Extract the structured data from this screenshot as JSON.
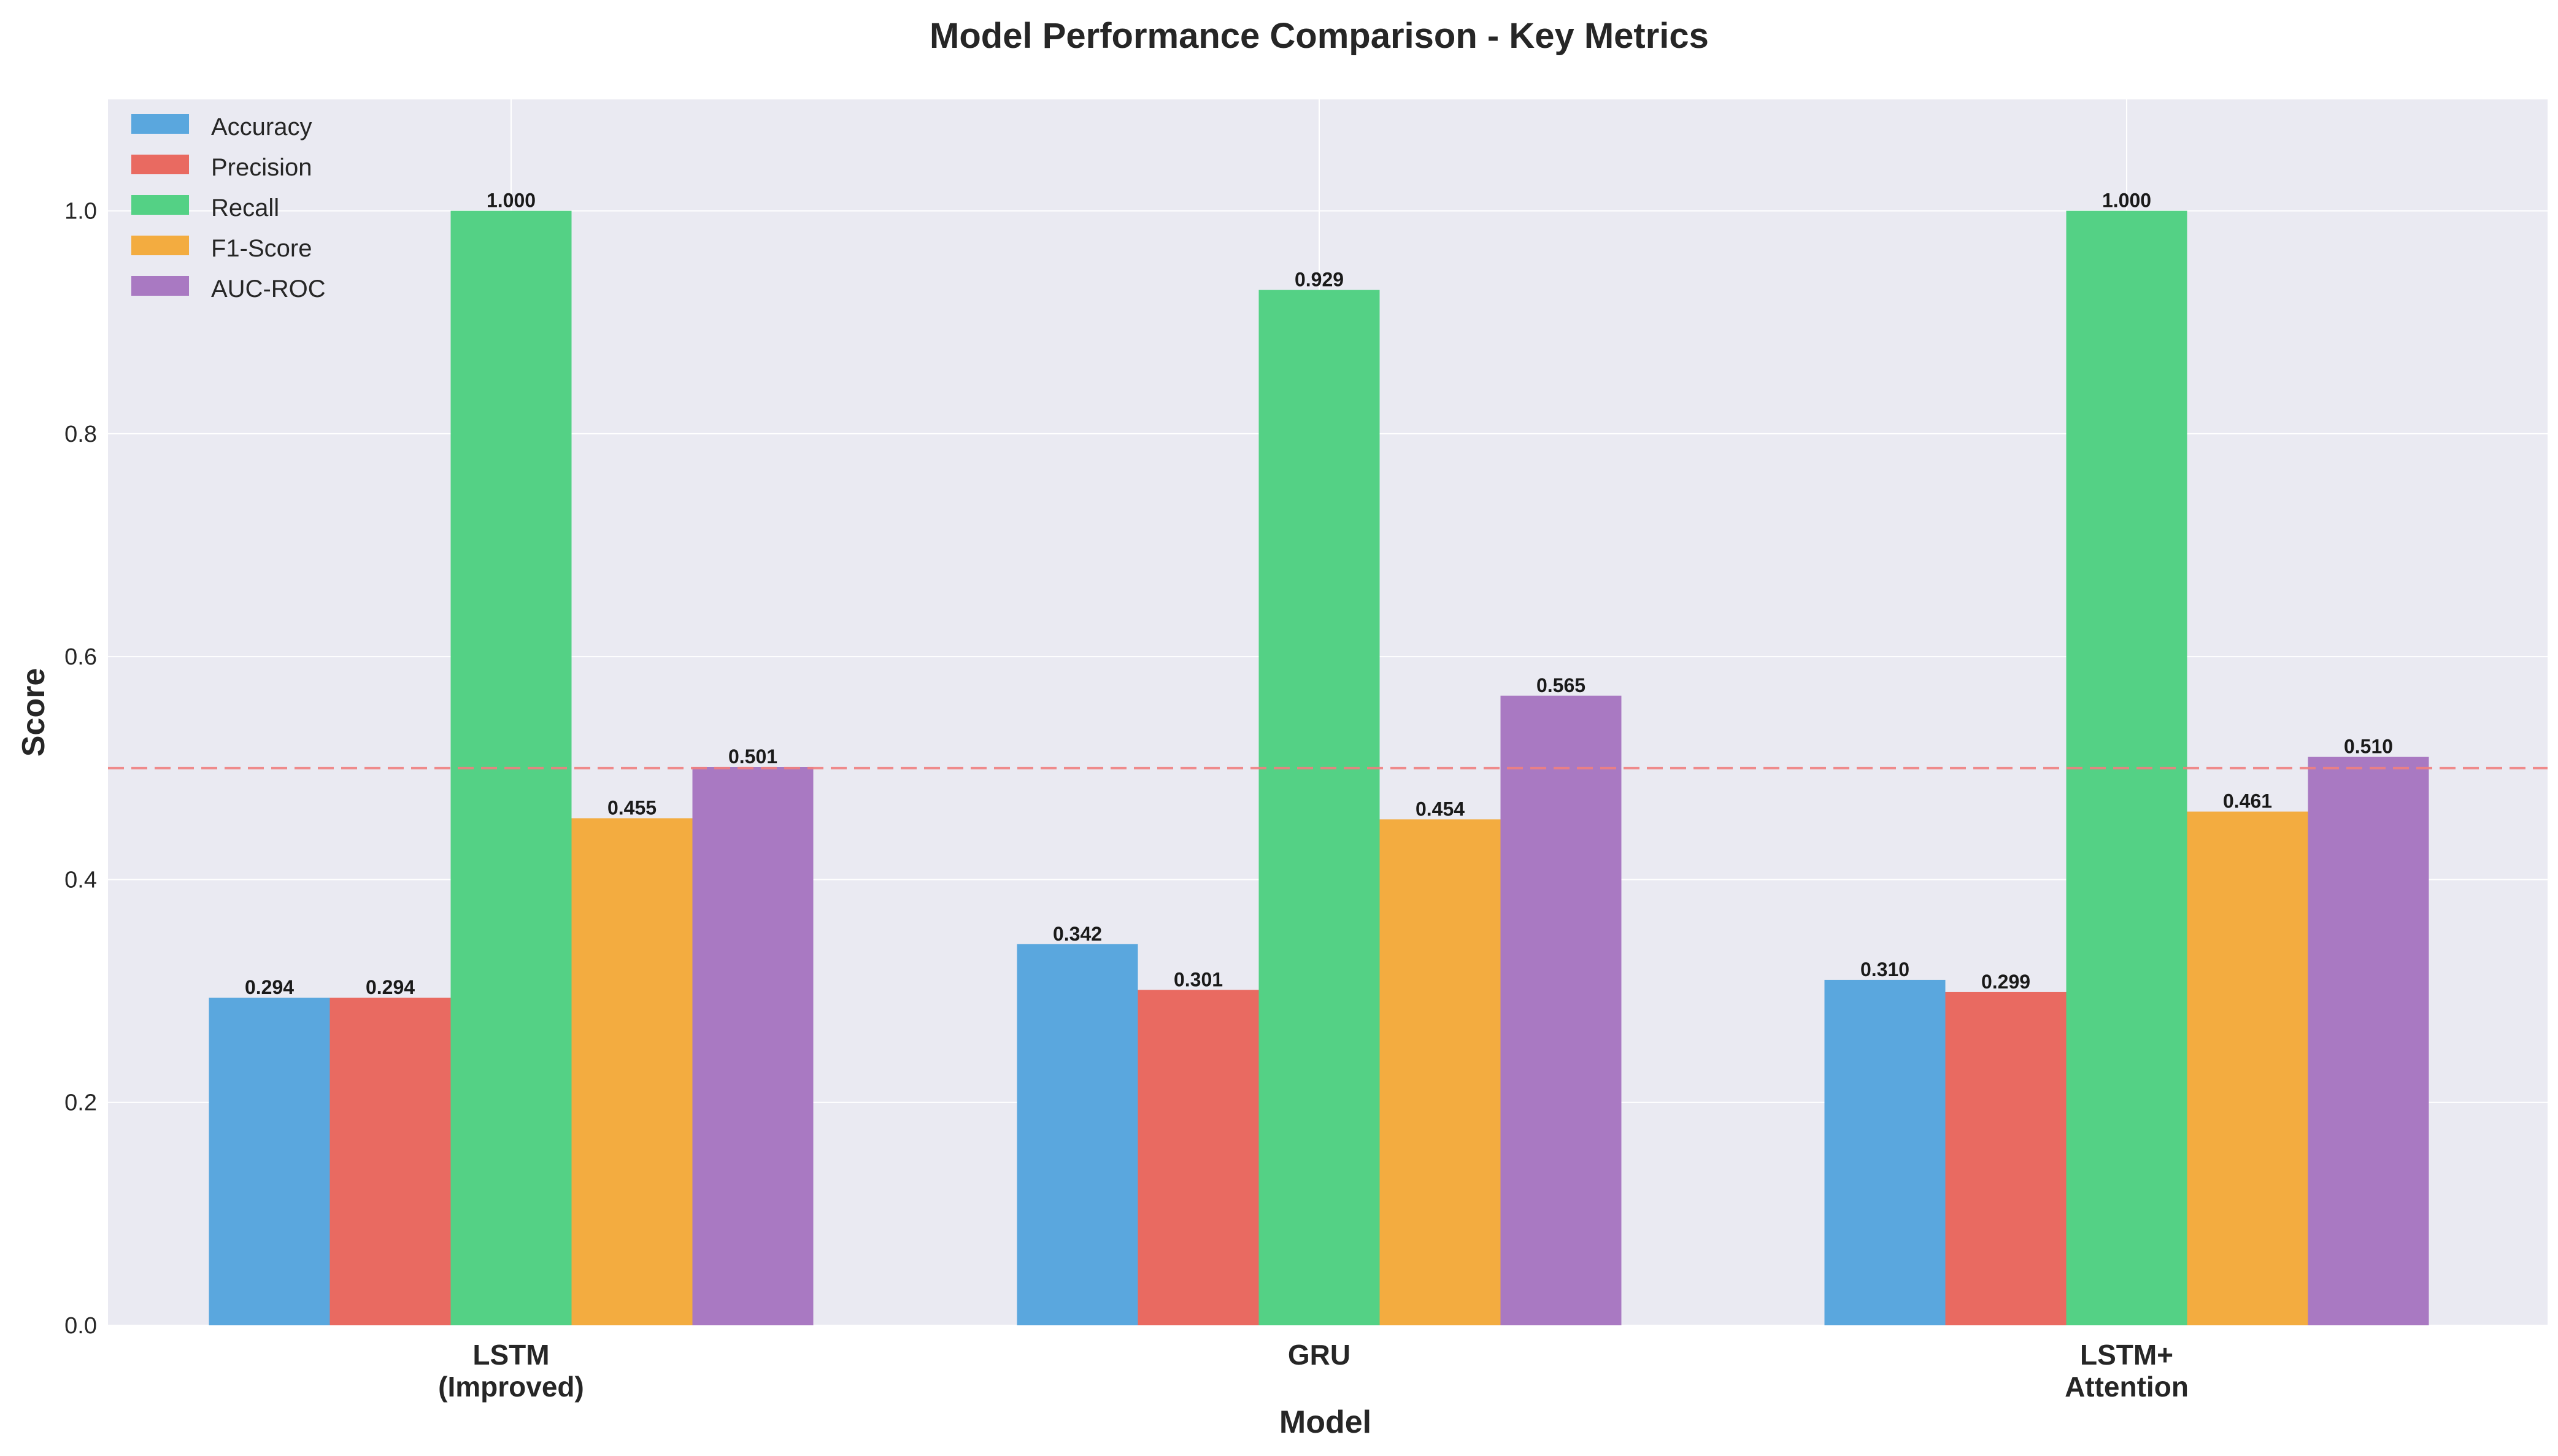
{
  "chart_data": {
    "type": "bar",
    "title": "Model Performance Comparison - Key Metrics",
    "xlabel": "Model",
    "ylabel": "Score",
    "categories": [
      [
        "LSTM",
        "(Improved)"
      ],
      [
        "GRU"
      ],
      [
        "LSTM+",
        "Attention"
      ]
    ],
    "ylim": [
      0,
      1.1
    ],
    "yticks": [
      0.0,
      0.2,
      0.4,
      0.6,
      0.8,
      1.0
    ],
    "ytick_labels": [
      "0.0",
      "0.2",
      "0.4",
      "0.6",
      "0.8",
      "1.0"
    ],
    "grid": true,
    "legend_position": "top-left",
    "reference_line": {
      "value": 0.5,
      "color": "#f08080",
      "style": "dashed"
    },
    "series": [
      {
        "name": "Accuracy",
        "color": "#5aa7de",
        "values": [
          0.294,
          0.342,
          0.31
        ],
        "labels": [
          "0.294",
          "0.342",
          "0.310"
        ]
      },
      {
        "name": "Precision",
        "color": "#e96a61",
        "values": [
          0.294,
          0.301,
          0.299
        ],
        "labels": [
          "0.294",
          "0.301",
          "0.299"
        ]
      },
      {
        "name": "Recall",
        "color": "#54d185",
        "values": [
          1.0,
          0.929,
          1.0
        ],
        "labels": [
          "1.000",
          "0.929",
          "1.000"
        ]
      },
      {
        "name": "F1-Score",
        "color": "#f3ac40",
        "values": [
          0.455,
          0.454,
          0.461
        ],
        "labels": [
          "0.455",
          "0.454",
          "0.461"
        ]
      },
      {
        "name": "AUC-ROC",
        "color": "#a979c2",
        "values": [
          0.501,
          0.565,
          0.51
        ],
        "labels": [
          "0.501",
          "0.565",
          "0.510"
        ]
      }
    ]
  }
}
